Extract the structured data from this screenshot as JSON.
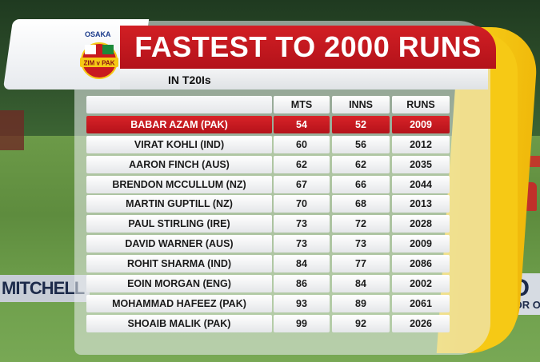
{
  "graphic": {
    "title": "FASTEST TO 2000 RUNS",
    "subtitle": "IN T20Is",
    "logo_text": "OSAKA",
    "logo_badge": "ZIM v PAK"
  },
  "background": {
    "board_left": "MITCHELL",
    "board_right_big": "ZIO",
    "board_right_small": "MOTOR O"
  },
  "table": {
    "headers": [
      "",
      "MTS",
      "INNS",
      "RUNS"
    ],
    "rows": [
      {
        "name": "BABAR AZAM (PAK)",
        "mts": "54",
        "inns": "52",
        "runs": "2009",
        "highlight": true
      },
      {
        "name": "VIRAT KOHLI (IND)",
        "mts": "60",
        "inns": "56",
        "runs": "2012"
      },
      {
        "name": "AARON FINCH (AUS)",
        "mts": "62",
        "inns": "62",
        "runs": "2035"
      },
      {
        "name": "BRENDON MCCULLUM (NZ)",
        "mts": "67",
        "inns": "66",
        "runs": "2044"
      },
      {
        "name": "MARTIN GUPTILL (NZ)",
        "mts": "70",
        "inns": "68",
        "runs": "2013"
      },
      {
        "name": "PAUL STIRLING (IRE)",
        "mts": "73",
        "inns": "72",
        "runs": "2028"
      },
      {
        "name": "DAVID WARNER (AUS)",
        "mts": "73",
        "inns": "73",
        "runs": "2009"
      },
      {
        "name": "ROHIT SHARMA (IND)",
        "mts": "84",
        "inns": "77",
        "runs": "2086"
      },
      {
        "name": "EOIN MORGAN (ENG)",
        "mts": "86",
        "inns": "84",
        "runs": "2002"
      },
      {
        "name": "MOHAMMAD HAFEEZ (PAK)",
        "mts": "93",
        "inns": "89",
        "runs": "2061"
      },
      {
        "name": "SHOAIB MALIK (PAK)",
        "mts": "99",
        "inns": "92",
        "runs": "2026"
      }
    ]
  },
  "colors": {
    "accent_red": "#c8191f",
    "accent_yellow": "#f6c915"
  }
}
